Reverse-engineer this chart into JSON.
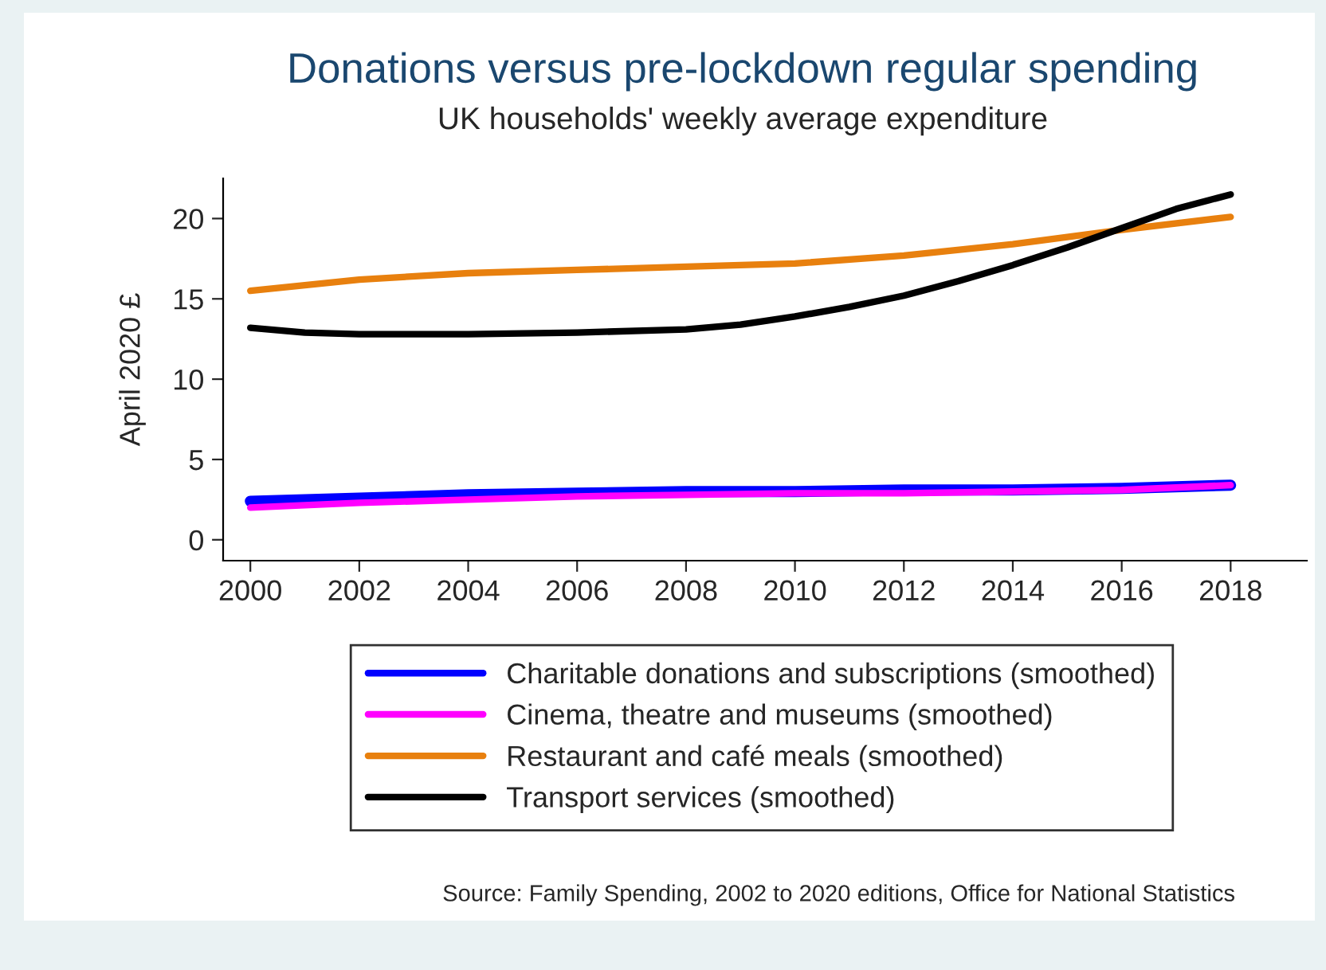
{
  "chart_data": {
    "type": "line",
    "title": "Donations versus pre-lockdown regular spending",
    "subtitle": "UK households' weekly average expenditure",
    "ylabel": "April 2020 £",
    "series": [
      {
        "name": "Charitable donations and subscriptions (smoothed)",
        "color": "#0000ff",
        "x": [
          2000,
          2002,
          2004,
          2006,
          2008,
          2010,
          2012,
          2014,
          2016,
          2018
        ],
        "values": [
          2.4,
          2.6,
          2.8,
          2.9,
          3.0,
          3.0,
          3.1,
          3.1,
          3.2,
          3.4
        ]
      },
      {
        "name": "Cinema, theatre and museums (smoothed)",
        "color": "#ff00ff",
        "x": [
          2000,
          2002,
          2004,
          2006,
          2008,
          2010,
          2012,
          2014,
          2016,
          2018
        ],
        "values": [
          2.0,
          2.3,
          2.5,
          2.7,
          2.8,
          2.9,
          2.9,
          3.0,
          3.1,
          3.4
        ]
      },
      {
        "name": "Restaurant and café meals (smoothed)",
        "color": "#e8800e",
        "x": [
          2000,
          2002,
          2004,
          2006,
          2008,
          2010,
          2012,
          2014,
          2016,
          2018
        ],
        "values": [
          15.5,
          16.2,
          16.6,
          16.8,
          17.0,
          17.2,
          17.7,
          18.4,
          19.3,
          20.1
        ]
      },
      {
        "name": "Transport services (smoothed)",
        "color": "#000000",
        "x": [
          2000,
          2001,
          2002,
          2004,
          2006,
          2008,
          2009,
          2010,
          2011,
          2012,
          2013,
          2014,
          2015,
          2016,
          2017,
          2018
        ],
        "values": [
          13.2,
          12.9,
          12.8,
          12.8,
          12.9,
          13.1,
          13.4,
          13.9,
          14.5,
          15.2,
          16.1,
          17.1,
          18.2,
          19.4,
          20.6,
          21.5
        ]
      }
    ],
    "xlim": [
      1999.5,
      2019.4
    ],
    "xticks": [
      2000,
      2002,
      2004,
      2006,
      2008,
      2010,
      2012,
      2014,
      2016,
      2018
    ],
    "ylim": [
      -1.3,
      22.5
    ],
    "yticks": [
      0,
      5,
      10,
      15,
      20
    ],
    "grid": false,
    "legend": "bottom",
    "marker": "none",
    "line_style": "solid",
    "annotations": [
      "Source: Family Spending, 2002 to 2020 editions, Office for National Statistics"
    ]
  }
}
